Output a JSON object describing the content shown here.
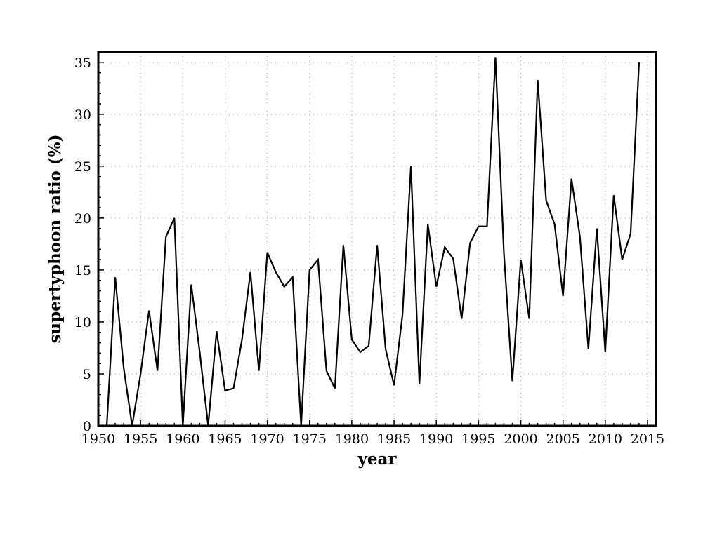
{
  "chart_data": {
    "type": "line",
    "xlabel": "year",
    "ylabel": "supertyphoon ratio (%)",
    "xlim": [
      1950,
      2016
    ],
    "ylim": [
      0,
      36
    ],
    "x_ticks": [
      1950,
      1955,
      1960,
      1965,
      1970,
      1975,
      1980,
      1985,
      1990,
      1995,
      2000,
      2005,
      2010,
      2015
    ],
    "y_ticks": [
      0,
      5,
      10,
      15,
      20,
      25,
      30,
      35
    ],
    "grid": true,
    "line_color": "#000000",
    "series": [
      {
        "x": [
          1951,
          1952,
          1953,
          1954,
          1955,
          1956,
          1957,
          1958,
          1959,
          1960,
          1961,
          1962,
          1963,
          1964,
          1965,
          1966,
          1967,
          1968,
          1969,
          1970,
          1971,
          1972,
          1973,
          1974,
          1975,
          1976,
          1977,
          1978,
          1979,
          1980,
          1981,
          1982,
          1983,
          1984,
          1985,
          1986,
          1987,
          1988,
          1989,
          1990,
          1991,
          1992,
          1993,
          1994,
          1995,
          1996,
          1997,
          1998,
          1999,
          2000,
          2001,
          2002,
          2003,
          2004,
          2005,
          2006,
          2007,
          2008,
          2009,
          2010,
          2011,
          2012,
          2013,
          2014
        ],
        "values": [
          0,
          14.3,
          5.6,
          0,
          5,
          11.1,
          5.3,
          18.2,
          20,
          0,
          13.6,
          7.1,
          0,
          9.1,
          3.4,
          3.6,
          8.3,
          14.8,
          5.3,
          16.7,
          14.8,
          13.4,
          14.3,
          0,
          15,
          16,
          5.3,
          3.6,
          17.4,
          8.3,
          7.1,
          7.7,
          17.4,
          7.4,
          3.9,
          10.7,
          25,
          4,
          19.4,
          13.4,
          17.2,
          16.1,
          10.3,
          17.6,
          19.2,
          19.2,
          35.5,
          16.7,
          4.3,
          16,
          10.3,
          33.3,
          21.7,
          19.4,
          12.5,
          23.8,
          18.2,
          7.4,
          19,
          7.1,
          22.2,
          16,
          18.5,
          35
        ]
      }
    ]
  }
}
